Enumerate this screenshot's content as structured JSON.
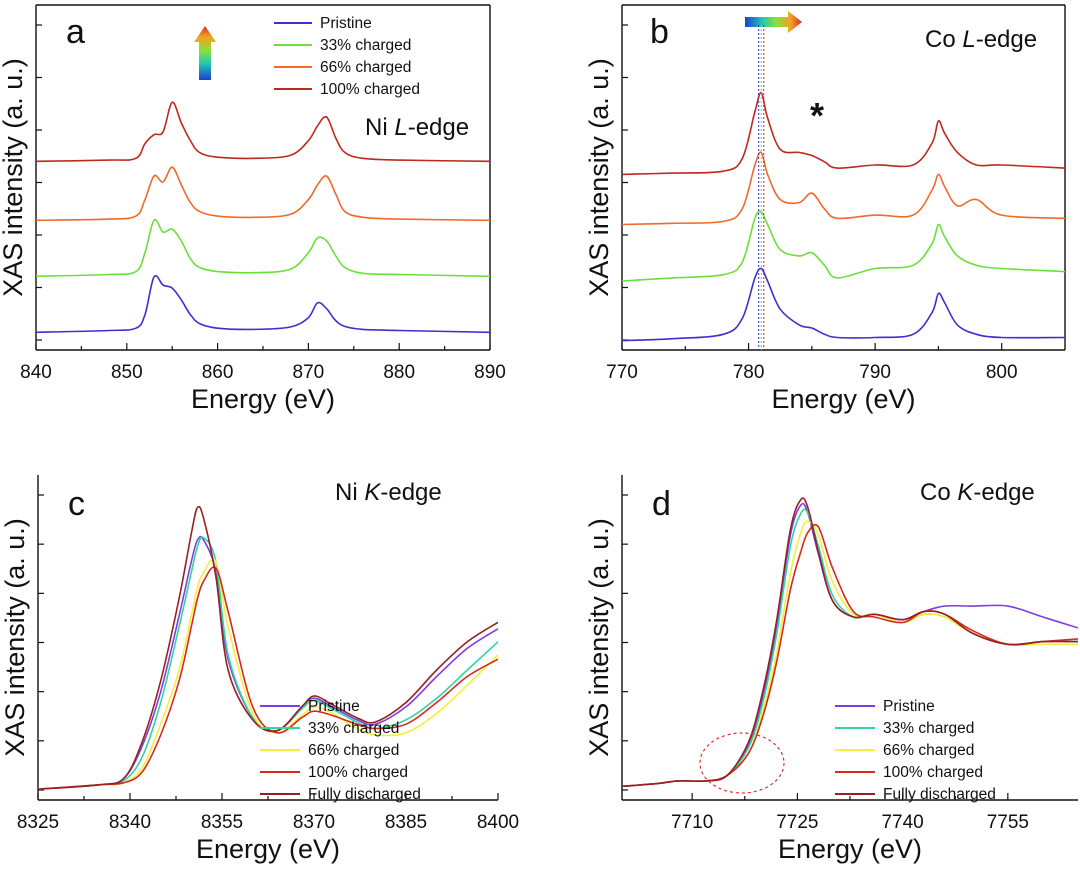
{
  "panels": [
    {
      "id": "a",
      "letter": "a",
      "edge_prefix": "Ni ",
      "edge_italic": "L",
      "edge_suffix": "-edge",
      "xlabel": "Energy (eV)",
      "ylabel": "XAS intensity (a. u.)",
      "xlim": [
        840,
        890
      ],
      "xticks": [
        840,
        850,
        860,
        870,
        880,
        890
      ],
      "xtick_labels": [
        "840",
        "850",
        "860",
        "870",
        "880",
        "890"
      ],
      "legend": [
        "Pristine",
        "33% charged",
        "66% charged",
        "100% charged"
      ],
      "series_colors": [
        "#3f2fd0",
        "#6be03a",
        "#f06a2a",
        "#c0281f"
      ]
    },
    {
      "id": "b",
      "letter": "b",
      "edge_prefix": "Co ",
      "edge_italic": "L",
      "edge_suffix": "-edge",
      "star": "*",
      "xlabel": "Energy (eV)",
      "ylabel": "XAS intensity (a. u.)",
      "xlim": [
        770,
        805
      ],
      "xticks": [
        770,
        780,
        790,
        800
      ],
      "xtick_labels": [
        "770",
        "780",
        "790",
        "800"
      ],
      "series_colors": [
        "#3f2fd0",
        "#6be03a",
        "#f06a2a",
        "#c0281f"
      ]
    },
    {
      "id": "c",
      "letter": "c",
      "edge_prefix": "Ni ",
      "edge_italic": "K",
      "edge_suffix": "-edge",
      "xlabel": "Energy (eV)",
      "ylabel": "XAS intensity (a. u.)",
      "xlim": [
        8325,
        8400
      ],
      "xticks": [
        8325,
        8340,
        8355,
        8370,
        8385,
        8400
      ],
      "xtick_labels": [
        "8325",
        "8340",
        "8355",
        "8370",
        "8385",
        "8400"
      ],
      "legend": [
        "Pristine",
        "33% charged",
        "66% charged",
        "100% charged",
        "Fully discharged"
      ],
      "series_colors": [
        "#7b3fe0",
        "#2fd6a0",
        "#f5ee3a",
        "#d62a1e",
        "#9a1f24"
      ]
    },
    {
      "id": "d",
      "letter": "d",
      "edge_prefix": "Co ",
      "edge_italic": "K",
      "edge_suffix": "-edge",
      "xlabel": "Energy (eV)",
      "ylabel": "XAS intensity (a. u.)",
      "xlim": [
        7700,
        7765
      ],
      "xticks": [
        7710,
        7725,
        7740,
        7755
      ],
      "xtick_labels": [
        "7710",
        "7725",
        "7740",
        "7755"
      ],
      "legend": [
        "Pristine",
        "33% charged",
        "66% charged",
        "100% charged",
        "Fully discharged"
      ],
      "series_colors": [
        "#7b3fe0",
        "#2fd6a0",
        "#f5ee3a",
        "#d62a1e",
        "#9a1f24"
      ]
    }
  ],
  "chart_data": [
    {
      "type": "line",
      "title": "Ni L-edge",
      "xlabel": "Energy (eV)",
      "ylabel": "XAS intensity (a. u.)",
      "xlim": [
        840,
        890
      ],
      "grid": false,
      "series": [
        {
          "name": "Pristine",
          "x": [
            840,
            848,
            851,
            852,
            853,
            854,
            855,
            856,
            857,
            858,
            860,
            864,
            868,
            870,
            871,
            872,
            873,
            874,
            876,
            880,
            890
          ],
          "values": [
            0.05,
            0.08,
            0.12,
            0.35,
            0.99,
            0.85,
            0.8,
            0.6,
            0.35,
            0.2,
            0.12,
            0.1,
            0.14,
            0.3,
            0.55,
            0.45,
            0.25,
            0.15,
            0.1,
            0.08,
            0.05
          ]
        },
        {
          "name": "33% charged",
          "x": [
            840,
            848,
            851,
            852,
            853,
            854,
            855,
            856,
            857,
            858,
            860,
            864,
            868,
            870,
            871,
            872,
            873,
            874,
            876,
            880,
            890
          ],
          "values": [
            1.0,
            1.03,
            1.08,
            1.4,
            1.95,
            1.75,
            1.8,
            1.6,
            1.3,
            1.15,
            1.08,
            1.06,
            1.12,
            1.4,
            1.65,
            1.6,
            1.35,
            1.15,
            1.05,
            1.03,
            1.0
          ]
        },
        {
          "name": "66% charged",
          "x": [
            840,
            848,
            851,
            852,
            853,
            854,
            855,
            856,
            857,
            858,
            860,
            864,
            868,
            870,
            871,
            872,
            873,
            874,
            876,
            880,
            890
          ],
          "values": [
            1.95,
            1.97,
            2.02,
            2.3,
            2.7,
            2.6,
            2.85,
            2.55,
            2.25,
            2.1,
            2.02,
            2.0,
            2.05,
            2.3,
            2.55,
            2.7,
            2.4,
            2.1,
            2.0,
            1.97,
            1.95
          ]
        },
        {
          "name": "100% charged",
          "x": [
            840,
            848,
            851,
            852,
            853,
            854,
            855,
            856,
            857,
            858,
            860,
            864,
            868,
            870,
            871,
            872,
            873,
            874,
            876,
            880,
            890
          ],
          "values": [
            2.95,
            2.97,
            3.0,
            3.25,
            3.4,
            3.45,
            3.95,
            3.6,
            3.3,
            3.1,
            3.02,
            3.0,
            3.05,
            3.3,
            3.55,
            3.7,
            3.35,
            3.1,
            3.0,
            2.97,
            2.95
          ]
        }
      ],
      "arrow_direction": "up"
    },
    {
      "type": "line",
      "title": "Co L-edge",
      "xlabel": "Energy (eV)",
      "ylabel": "XAS intensity (a. u.)",
      "xlim": [
        770,
        805
      ],
      "grid": false,
      "series": [
        {
          "name": "Pristine",
          "x": [
            770,
            774,
            778,
            779.5,
            780.5,
            781,
            781.5,
            782.5,
            784,
            785,
            786,
            787,
            790,
            793,
            794.5,
            795,
            795.5,
            796.5,
            798,
            800,
            805
          ],
          "values": [
            0.05,
            0.08,
            0.15,
            0.4,
            1.05,
            1.2,
            1.0,
            0.55,
            0.3,
            0.25,
            0.15,
            0.1,
            0.1,
            0.15,
            0.5,
            0.8,
            0.65,
            0.3,
            0.15,
            0.1,
            0.1
          ]
        },
        {
          "name": "33% charged",
          "x": [
            770,
            774,
            778,
            779.5,
            780.5,
            781,
            781.5,
            782.5,
            784,
            785,
            786,
            787,
            790,
            793,
            794.5,
            795,
            795.5,
            796.5,
            798,
            800,
            805
          ],
          "values": [
            1.0,
            1.05,
            1.1,
            1.3,
            2.0,
            2.1,
            1.9,
            1.5,
            1.4,
            1.45,
            1.25,
            1.05,
            1.2,
            1.25,
            1.6,
            1.9,
            1.7,
            1.4,
            1.25,
            1.2,
            1.15
          ]
        },
        {
          "name": "66% charged",
          "x": [
            770,
            774,
            778,
            779.5,
            780.5,
            781,
            781.5,
            782.5,
            784,
            785,
            786,
            787,
            790,
            793,
            794.5,
            795,
            795.5,
            796.5,
            798,
            800,
            805
          ],
          "values": [
            1.9,
            1.92,
            1.95,
            2.15,
            2.85,
            3.05,
            2.7,
            2.3,
            2.25,
            2.4,
            2.15,
            2.0,
            2.05,
            2.05,
            2.45,
            2.7,
            2.5,
            2.2,
            2.3,
            2.05,
            2.0
          ]
        },
        {
          "name": "100% charged",
          "x": [
            770,
            774,
            778,
            779.5,
            780.5,
            781,
            781.5,
            782.5,
            784,
            785,
            786,
            787,
            790,
            793,
            794.5,
            795,
            795.5,
            796.5,
            798,
            800,
            805
          ],
          "values": [
            2.7,
            2.72,
            2.75,
            2.95,
            3.7,
            4.0,
            3.6,
            3.1,
            3.05,
            3.0,
            2.9,
            2.8,
            2.85,
            2.85,
            3.2,
            3.55,
            3.35,
            3.05,
            2.85,
            2.85,
            2.8
          ]
        }
      ],
      "annotation": "*",
      "arrow_direction": "right"
    },
    {
      "type": "line",
      "title": "Ni K-edge",
      "xlabel": "Energy (eV)",
      "ylabel": "XAS intensity (a. u.)",
      "xlim": [
        8325,
        8400
      ],
      "grid": false,
      "series": [
        {
          "name": "Pristine",
          "x": [
            8325,
            8335,
            8339,
            8342,
            8345,
            8348,
            8350,
            8351,
            8352,
            8354,
            8356,
            8360,
            8364,
            8368,
            8370,
            8373,
            8377,
            8380,
            8385,
            8390,
            8395,
            8400
          ],
          "values": [
            0.0,
            0.02,
            0.05,
            0.2,
            0.45,
            0.8,
            1.05,
            1.15,
            1.15,
            1.0,
            0.6,
            0.33,
            0.27,
            0.38,
            0.42,
            0.38,
            0.32,
            0.3,
            0.38,
            0.52,
            0.65,
            0.74
          ]
        },
        {
          "name": "33% charged",
          "x": [
            8325,
            8335,
            8339,
            8342,
            8345,
            8348,
            8350,
            8351,
            8352,
            8354,
            8356,
            8360,
            8364,
            8368,
            8370,
            8373,
            8377,
            8380,
            8385,
            8390,
            8395,
            8400
          ],
          "values": [
            0.0,
            0.02,
            0.04,
            0.15,
            0.4,
            0.75,
            1.0,
            1.12,
            1.16,
            1.05,
            0.62,
            0.33,
            0.27,
            0.37,
            0.41,
            0.37,
            0.31,
            0.28,
            0.32,
            0.42,
            0.55,
            0.68
          ]
        },
        {
          "name": "66% charged",
          "x": [
            8325,
            8335,
            8339,
            8342,
            8345,
            8348,
            8350,
            8351,
            8352,
            8354,
            8356,
            8360,
            8364,
            8368,
            8370,
            8373,
            8377,
            8380,
            8385,
            8390,
            8395,
            8400
          ],
          "values": [
            0.0,
            0.02,
            0.03,
            0.1,
            0.3,
            0.55,
            0.8,
            0.93,
            1.0,
            1.05,
            0.75,
            0.35,
            0.26,
            0.34,
            0.38,
            0.35,
            0.28,
            0.25,
            0.26,
            0.35,
            0.48,
            0.62
          ]
        },
        {
          "name": "100% charged",
          "x": [
            8325,
            8335,
            8339,
            8342,
            8345,
            8348,
            8350,
            8351,
            8352,
            8354,
            8356,
            8360,
            8364,
            8368,
            8370,
            8373,
            8377,
            8380,
            8385,
            8390,
            8395,
            8400
          ],
          "values": [
            0.0,
            0.02,
            0.03,
            0.08,
            0.25,
            0.5,
            0.75,
            0.88,
            0.96,
            1.02,
            0.82,
            0.38,
            0.26,
            0.33,
            0.36,
            0.34,
            0.3,
            0.28,
            0.3,
            0.4,
            0.52,
            0.6
          ]
        },
        {
          "name": "Fully discharged",
          "x": [
            8325,
            8335,
            8339,
            8342,
            8345,
            8348,
            8350,
            8351,
            8352,
            8354,
            8356,
            8360,
            8364,
            8368,
            8370,
            8373,
            8377,
            8380,
            8385,
            8390,
            8395,
            8400
          ],
          "values": [
            0.0,
            0.02,
            0.05,
            0.22,
            0.5,
            0.88,
            1.18,
            1.3,
            1.25,
            0.98,
            0.55,
            0.32,
            0.27,
            0.38,
            0.43,
            0.39,
            0.33,
            0.31,
            0.4,
            0.55,
            0.68,
            0.77
          ]
        }
      ]
    },
    {
      "type": "line",
      "title": "Co K-edge",
      "xlabel": "Energy (eV)",
      "ylabel": "XAS intensity (a. u.)",
      "xlim": [
        7700,
        7765
      ],
      "grid": false,
      "series": [
        {
          "name": "Pristine",
          "x": [
            7700,
            7705,
            7708,
            7712,
            7715,
            7718,
            7720,
            7722,
            7724,
            7725.5,
            7726.5,
            7728,
            7730,
            7733,
            7736,
            7740,
            7743,
            7746,
            7750,
            7755,
            7760,
            7765
          ],
          "values": [
            0.0,
            0.01,
            0.02,
            0.02,
            0.04,
            0.15,
            0.32,
            0.58,
            0.92,
            1.03,
            1.0,
            0.85,
            0.68,
            0.62,
            0.63,
            0.61,
            0.64,
            0.66,
            0.66,
            0.66,
            0.62,
            0.58
          ]
        },
        {
          "name": "33% charged",
          "x": [
            7700,
            7705,
            7708,
            7712,
            7715,
            7718,
            7720,
            7722,
            7724,
            7725.5,
            7726.5,
            7728,
            7730,
            7733,
            7736,
            7740,
            7743,
            7746,
            7750,
            7755,
            7760,
            7765
          ],
          "values": [
            0.0,
            0.01,
            0.02,
            0.02,
            0.04,
            0.14,
            0.3,
            0.55,
            0.88,
            1.0,
            1.0,
            0.88,
            0.7,
            0.62,
            0.63,
            0.6,
            0.63,
            0.62,
            0.56,
            0.52,
            0.53,
            0.53
          ]
        },
        {
          "name": "66% charged",
          "x": [
            7700,
            7705,
            7708,
            7712,
            7715,
            7718,
            7720,
            7722,
            7724,
            7725.5,
            7726.5,
            7728,
            7730,
            7733,
            7736,
            7740,
            7743,
            7746,
            7750,
            7755,
            7760,
            7765
          ],
          "values": [
            0.0,
            0.01,
            0.02,
            0.02,
            0.04,
            0.12,
            0.27,
            0.48,
            0.78,
            0.93,
            0.97,
            0.92,
            0.75,
            0.63,
            0.63,
            0.6,
            0.63,
            0.62,
            0.56,
            0.52,
            0.52,
            0.52
          ]
        },
        {
          "name": "100% charged",
          "x": [
            7700,
            7705,
            7708,
            7712,
            7715,
            7718,
            7720,
            7722,
            7724,
            7725.5,
            7726.5,
            7728,
            7730,
            7733,
            7736,
            7740,
            7743,
            7746,
            7750,
            7755,
            7760,
            7765
          ],
          "values": [
            0.0,
            0.01,
            0.02,
            0.02,
            0.04,
            0.12,
            0.25,
            0.45,
            0.72,
            0.86,
            0.93,
            0.95,
            0.8,
            0.64,
            0.62,
            0.6,
            0.64,
            0.63,
            0.57,
            0.52,
            0.53,
            0.54
          ]
        },
        {
          "name": "Fully discharged",
          "x": [
            7700,
            7705,
            7708,
            7712,
            7715,
            7718,
            7720,
            7722,
            7724,
            7725.5,
            7726.5,
            7728,
            7730,
            7733,
            7736,
            7740,
            7743,
            7746,
            7750,
            7755,
            7760,
            7765
          ],
          "values": [
            0.0,
            0.01,
            0.02,
            0.02,
            0.04,
            0.16,
            0.34,
            0.6,
            0.94,
            1.05,
            1.02,
            0.86,
            0.68,
            0.62,
            0.63,
            0.61,
            0.64,
            0.63,
            0.56,
            0.52,
            0.53,
            0.53
          ]
        }
      ],
      "annotation": "dashed ellipse near pre-edge"
    }
  ]
}
